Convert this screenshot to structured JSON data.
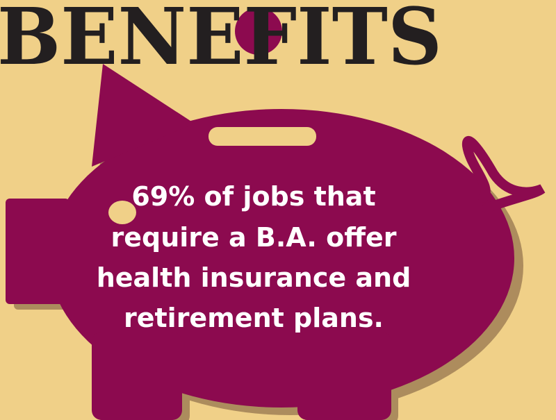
{
  "title": "BENEFITS",
  "statement": [
    "69% of jobs that",
    "require a B.A. offer",
    "health insurance and",
    "retirement plans."
  ]
}
